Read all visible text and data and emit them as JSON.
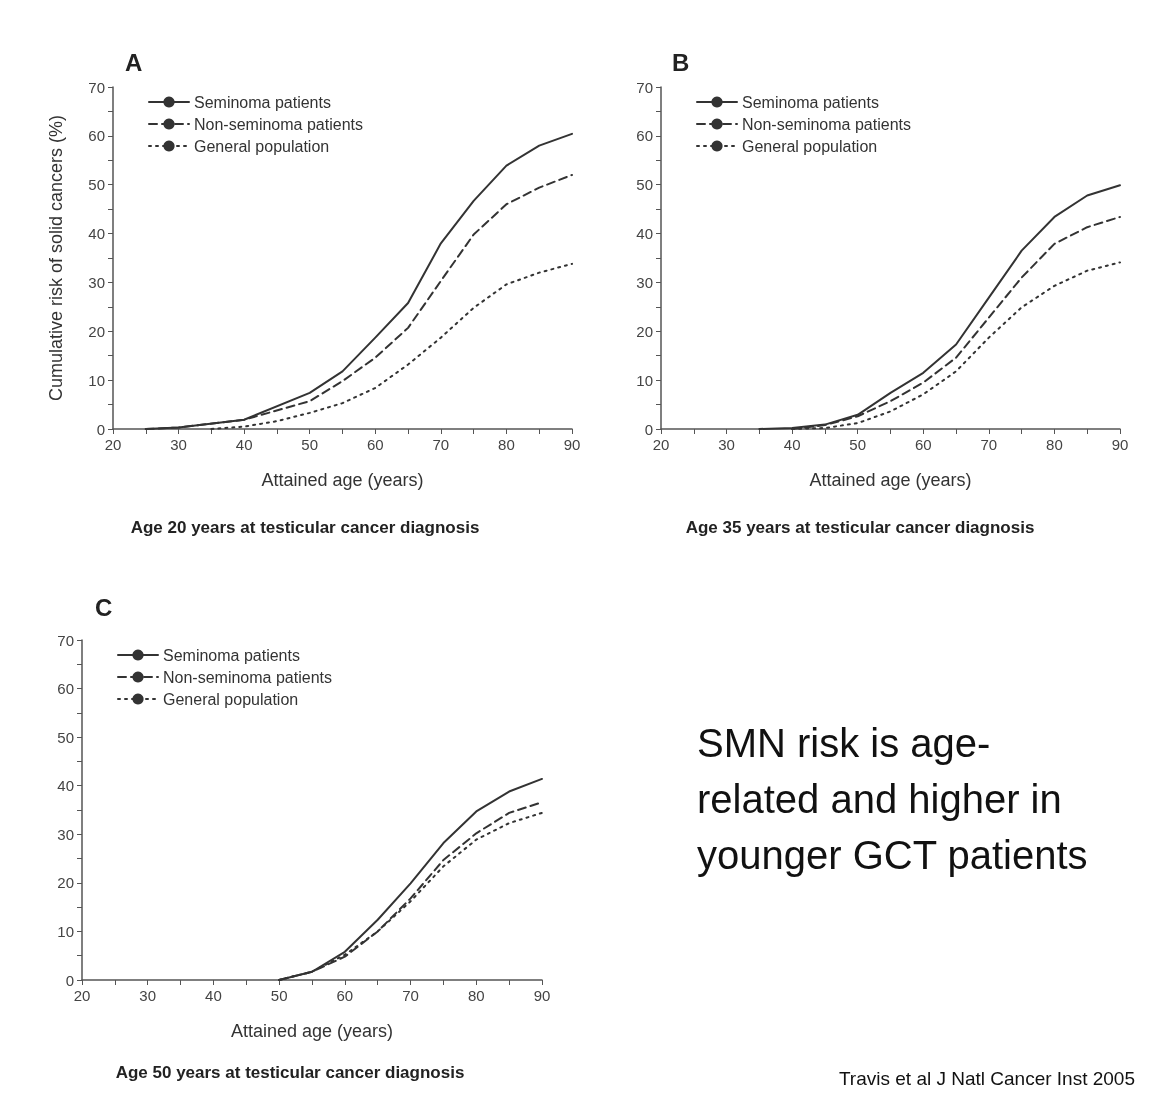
{
  "chart_data": [
    {
      "type": "line",
      "title": "A",
      "subtitle": "Age 20 years at testicular cancer diagnosis",
      "xlabel": "Attained age (years)",
      "ylabel": "Cumulative risk of solid cancers (%)",
      "xlim": [
        20,
        90
      ],
      "xticks": [
        20,
        30,
        40,
        50,
        60,
        70,
        80,
        90
      ],
      "ylim": [
        0,
        70
      ],
      "yticks": [
        0,
        10,
        20,
        30,
        40,
        50,
        60,
        70
      ],
      "legend": "top left",
      "marker": "none",
      "grid": false,
      "series": [
        {
          "name": "Seminoma patients",
          "color": "#333333",
          "line_style": "solid",
          "x": [
            25,
            30,
            40,
            50,
            55,
            60,
            65,
            70,
            75,
            80,
            85,
            90
          ],
          "values": [
            0,
            0.3,
            1.9,
            7.4,
            11.8,
            18.7,
            25.8,
            38,
            46.7,
            53.9,
            58,
            60.4
          ]
        },
        {
          "name": "Non-seminoma patients",
          "color": "#333333",
          "line_style": "dashed",
          "x": [
            25,
            30,
            40,
            50,
            55,
            60,
            65,
            70,
            75,
            80,
            85,
            90
          ],
          "values": [
            0,
            0.3,
            1.9,
            5.7,
            9.8,
            14.6,
            20.7,
            30.3,
            39.8,
            46,
            49.4,
            52
          ]
        },
        {
          "name": "General population",
          "color": "#333333",
          "line_style": "dotted",
          "x": [
            35,
            40,
            45,
            50,
            55,
            60,
            65,
            70,
            75,
            80,
            85,
            90
          ],
          "values": [
            0,
            0.5,
            1.6,
            3.3,
            5.3,
            8.4,
            13.2,
            18.7,
            24.8,
            29.6,
            32,
            33.8
          ]
        }
      ]
    },
    {
      "type": "line",
      "title": "B",
      "subtitle": "Age 35 years at testicular cancer diagnosis",
      "xlabel": "Attained age (years)",
      "xlim": [
        20,
        90
      ],
      "xticks": [
        20,
        30,
        40,
        50,
        60,
        70,
        80,
        90
      ],
      "ylim": [
        0,
        70
      ],
      "yticks": [
        0,
        10,
        20,
        30,
        40,
        50,
        60,
        70
      ],
      "legend": "top left",
      "marker": "none",
      "grid": false,
      "series": [
        {
          "name": "Seminoma patients",
          "color": "#333333",
          "line_style": "solid",
          "x": [
            35,
            40,
            45,
            50,
            55,
            60,
            65,
            70,
            75,
            80,
            85,
            90
          ],
          "values": [
            0,
            0.2,
            0.9,
            2.9,
            7.4,
            11.5,
            17.3,
            26.9,
            36.5,
            43.4,
            47.8,
            49.9
          ]
        },
        {
          "name": "Non-seminoma patients",
          "color": "#333333",
          "line_style": "dashed",
          "x": [
            40,
            45,
            50,
            55,
            60,
            65,
            70,
            75,
            80,
            85,
            90
          ],
          "values": [
            0,
            0.8,
            2.6,
            5.7,
            9.5,
            14.6,
            22.8,
            31,
            37.9,
            41.3,
            43.4
          ]
        },
        {
          "name": "General population",
          "color": "#333333",
          "line_style": "dotted",
          "x": [
            40,
            45,
            50,
            55,
            60,
            65,
            70,
            75,
            80,
            85,
            90
          ],
          "values": [
            0,
            0.2,
            1.2,
            3.6,
            7.1,
            11.8,
            18.7,
            24.9,
            29.3,
            32.4,
            34.1
          ]
        }
      ]
    },
    {
      "type": "line",
      "title": "C",
      "subtitle": "Age 50 years at testicular cancer diagnosis",
      "xlabel": "Attained age (years)",
      "xlim": [
        20,
        90
      ],
      "xticks": [
        20,
        30,
        40,
        50,
        60,
        70,
        80,
        90
      ],
      "ylim": [
        0,
        70
      ],
      "yticks": [
        0,
        10,
        20,
        30,
        40,
        50,
        60,
        70
      ],
      "legend": "top left",
      "marker": "none",
      "grid": false,
      "series": [
        {
          "name": "Seminoma patients",
          "color": "#333333",
          "line_style": "solid",
          "x": [
            50,
            55,
            60,
            65,
            70,
            75,
            80,
            85,
            90
          ],
          "values": [
            0,
            1.7,
            5.8,
            12.4,
            19.9,
            28.2,
            34.7,
            38.8,
            41.4
          ]
        },
        {
          "name": "Non-seminoma patients",
          "color": "#333333",
          "line_style": "dashed",
          "x": [
            50,
            55,
            60,
            65,
            70,
            75,
            80,
            85,
            90
          ],
          "values": [
            0,
            1.7,
            4.8,
            10,
            16.8,
            24.7,
            30.2,
            34.4,
            36.6
          ]
        },
        {
          "name": "General population",
          "color": "#333333",
          "line_style": "dotted",
          "x": [
            50,
            55,
            60,
            65,
            70,
            75,
            80,
            85,
            90
          ],
          "values": [
            0,
            1.7,
            5.2,
            10,
            16.2,
            23.4,
            28.9,
            32.3,
            34.4
          ]
        }
      ]
    },
    {
      "type": "other",
      "annotations": [
        "SMN risk is age-related and higher in younger GCT patients",
        "Travis et al J Natl Cancer Inst 2005"
      ]
    }
  ]
}
